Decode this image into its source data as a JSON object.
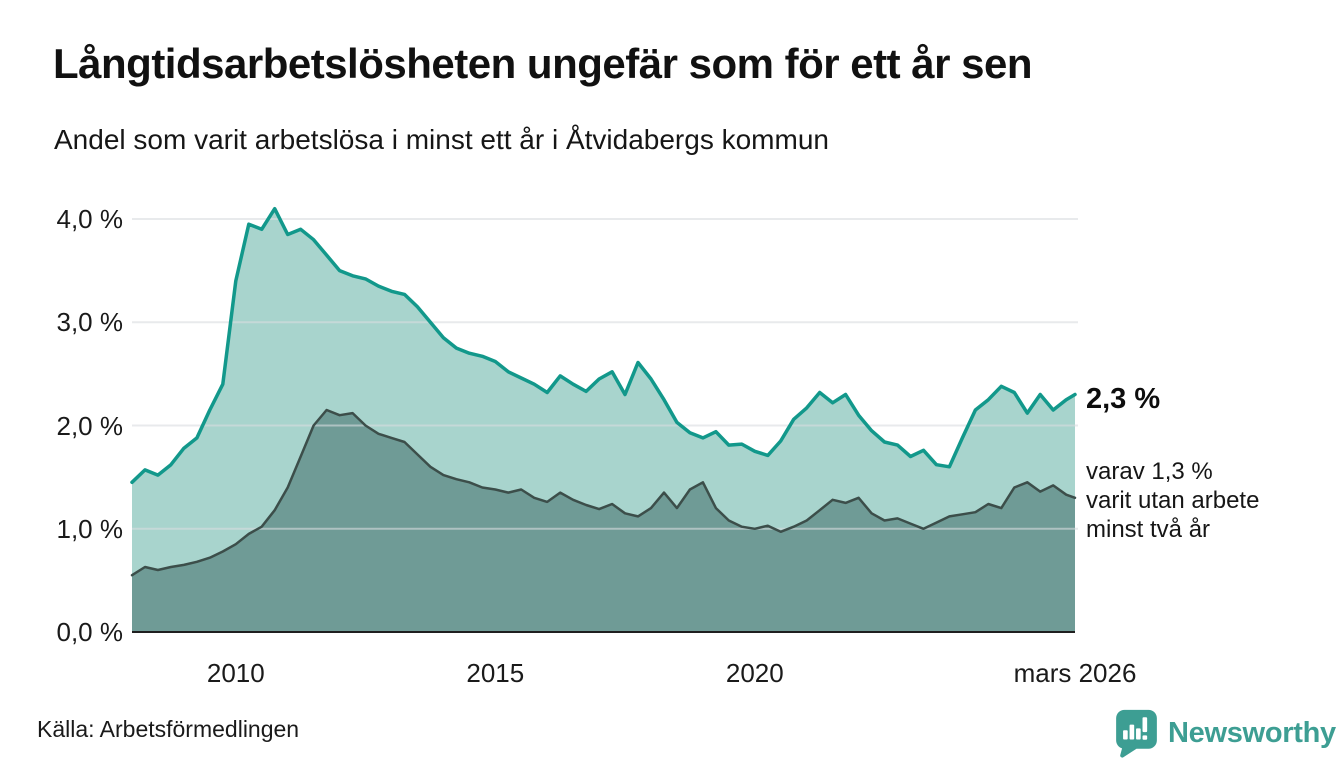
{
  "header": {
    "title": "Långtidsarbetslösheten ungefär som för ett år sen",
    "subtitle": "Andel som varit arbetslösa i minst ett år i Åtvidabergs kommun"
  },
  "chart_data": {
    "type": "area",
    "title": "Långtidsarbetslösheten ungefär som för ett år sen",
    "subtitle": "Andel som varit arbetslösa i minst ett år i Åtvidabergs kommun",
    "unit": "%",
    "grid": true,
    "xlim": [
      2008.0,
      2026.17
    ],
    "ylim": [
      0,
      4.0
    ],
    "x": [
      2008.0,
      2008.25,
      2008.5,
      2008.75,
      2009.0,
      2009.25,
      2009.5,
      2009.75,
      2010.0,
      2010.25,
      2010.5,
      2010.75,
      2011.0,
      2011.25,
      2011.5,
      2011.75,
      2012.0,
      2012.25,
      2012.5,
      2012.75,
      2013.0,
      2013.25,
      2013.5,
      2013.75,
      2014.0,
      2014.25,
      2014.5,
      2014.75,
      2015.0,
      2015.25,
      2015.5,
      2015.75,
      2016.0,
      2016.25,
      2016.5,
      2016.75,
      2017.0,
      2017.25,
      2017.5,
      2017.75,
      2018.0,
      2018.25,
      2018.5,
      2018.75,
      2019.0,
      2019.25,
      2019.5,
      2019.75,
      2020.0,
      2020.25,
      2020.5,
      2020.75,
      2021.0,
      2021.25,
      2021.5,
      2021.75,
      2022.0,
      2022.25,
      2022.5,
      2022.75,
      2023.0,
      2023.25,
      2023.5,
      2023.75,
      2024.0,
      2024.25,
      2024.5,
      2024.75,
      2025.0,
      2025.25,
      2025.5,
      2025.75,
      2026.0,
      2026.17
    ],
    "series": [
      {
        "name": "Andel som varit arbetslösa i minst ett år",
        "line_color": "#12988b",
        "fill_color": "#a8d4cd",
        "line_width": 3.5,
        "end_value": 2.3,
        "values": [
          1.45,
          1.57,
          1.52,
          1.62,
          1.78,
          1.88,
          2.15,
          2.4,
          3.4,
          3.95,
          3.9,
          4.1,
          3.85,
          3.9,
          3.8,
          3.65,
          3.5,
          3.45,
          3.42,
          3.35,
          3.3,
          3.27,
          3.15,
          3.0,
          2.85,
          2.75,
          2.7,
          2.67,
          2.62,
          2.52,
          2.46,
          2.4,
          2.32,
          2.48,
          2.4,
          2.33,
          2.45,
          2.52,
          2.3,
          2.61,
          2.45,
          2.25,
          2.03,
          1.93,
          1.88,
          1.94,
          1.81,
          1.82,
          1.75,
          1.71,
          1.85,
          2.06,
          2.17,
          2.32,
          2.22,
          2.3,
          2.1,
          1.95,
          1.84,
          1.81,
          1.7,
          1.76,
          1.62,
          1.6,
          1.88,
          2.15,
          2.25,
          2.38,
          2.32,
          2.12,
          2.3,
          2.15,
          2.25,
          2.3
        ]
      },
      {
        "name": "Andel som varit utan arbete minst två år",
        "line_color": "#3c4e4a",
        "fill_color": "#6f9b96",
        "line_width": 2.5,
        "end_value": 1.3,
        "values": [
          0.55,
          0.63,
          0.6,
          0.63,
          0.65,
          0.68,
          0.72,
          0.78,
          0.85,
          0.95,
          1.02,
          1.18,
          1.4,
          1.7,
          2.0,
          2.15,
          2.1,
          2.12,
          2.0,
          1.92,
          1.88,
          1.84,
          1.72,
          1.6,
          1.52,
          1.48,
          1.45,
          1.4,
          1.38,
          1.35,
          1.38,
          1.3,
          1.26,
          1.35,
          1.28,
          1.23,
          1.19,
          1.24,
          1.15,
          1.12,
          1.2,
          1.35,
          1.2,
          1.38,
          1.45,
          1.2,
          1.08,
          1.02,
          1.0,
          1.03,
          0.97,
          1.02,
          1.08,
          1.18,
          1.28,
          1.25,
          1.3,
          1.15,
          1.08,
          1.1,
          1.05,
          1.0,
          1.06,
          1.12,
          1.14,
          1.16,
          1.24,
          1.2,
          1.4,
          1.45,
          1.36,
          1.42,
          1.33,
          1.3
        ]
      }
    ],
    "y_ticks": [
      {
        "value": 0,
        "label": "0,0 %"
      },
      {
        "value": 1,
        "label": "1,0 %"
      },
      {
        "value": 2,
        "label": "2,0 %"
      },
      {
        "value": 3,
        "label": "3,0 %"
      },
      {
        "value": 4,
        "label": "4,0 %"
      }
    ],
    "x_ticks": [
      {
        "value": 2010,
        "label": "2010"
      },
      {
        "value": 2015,
        "label": "2015"
      },
      {
        "value": 2020,
        "label": "2020"
      },
      {
        "value": 2026.17,
        "label": "mars 2026"
      }
    ],
    "grid_color": "#d8dcdf",
    "axis_color": "#1f1f1f",
    "annotations": {
      "primary_value": "2,3 %",
      "secondary_note_lines": [
        "varav 1,3 %",
        "varit utan arbete",
        "minst två år"
      ]
    }
  },
  "footer": {
    "source": "Källa: Arbetsförmedlingen",
    "logo_text": "Newsworthy",
    "brand_color": "#3d9e93"
  }
}
